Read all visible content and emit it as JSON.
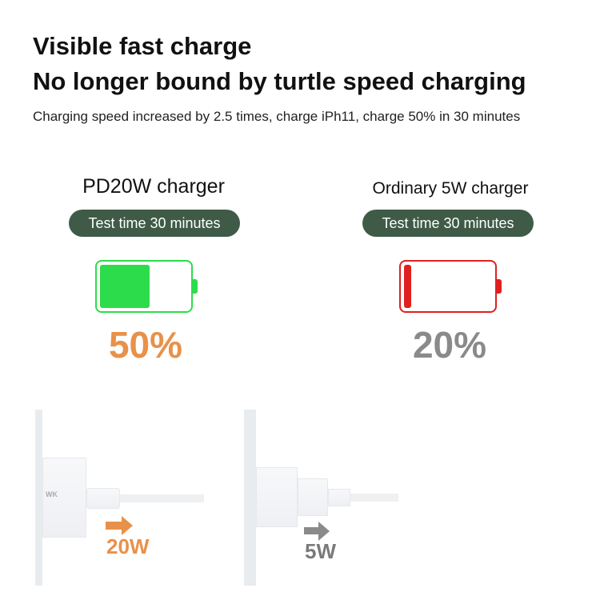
{
  "header": {
    "title1": "Visible fast charge",
    "title2": "No longer bound by turtle speed charging",
    "subtitle": "Charging speed increased by 2.5 times, charge iPh11, charge 50% in 30 minutes"
  },
  "left": {
    "label": "PD20W charger",
    "pill": "Test time 30 minutes",
    "percent": "50%",
    "charge_level": 0.5,
    "battery_color": "#2ddc4a",
    "percent_color": "#e8914a",
    "watt": "20W",
    "brand_logo": "WK"
  },
  "right": {
    "label": "Ordinary 5W charger",
    "pill": "Test time 30 minutes",
    "percent": "20%",
    "charge_level": 0.2,
    "battery_color": "#e02020",
    "percent_color": "#8a8a8a",
    "watt": "5W"
  }
}
